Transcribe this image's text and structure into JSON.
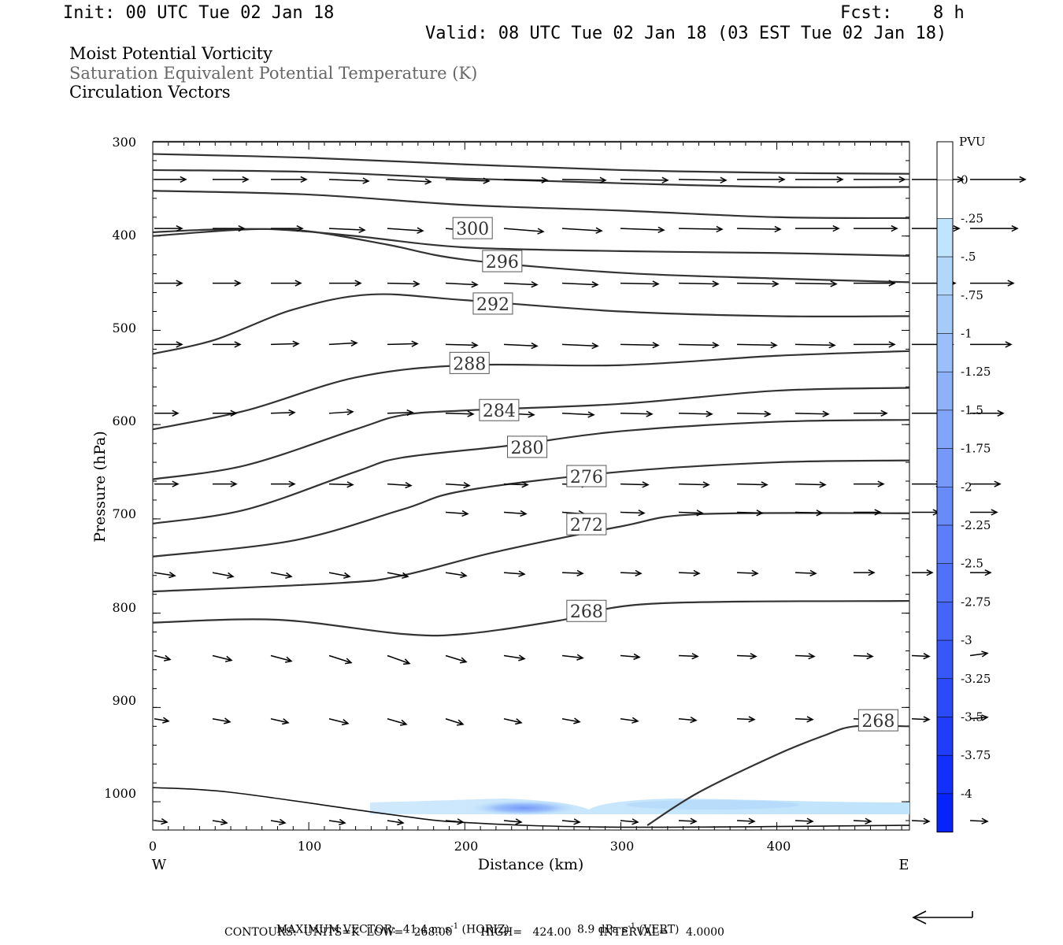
{
  "header": {
    "init": "Init: 00 UTC Tue 02 Jan 18",
    "fcst_label": "Fcst:",
    "fcst_value": "8 h",
    "valid": "Valid: 08 UTC Tue 02 Jan 18 (03 EST Tue 02 Jan 18)",
    "fields": [
      "Moist Potential Vorticity",
      "Saturation Equivalent Potential Temperature (K)",
      "Circulation Vectors"
    ]
  },
  "axes": {
    "ylabel": "Pressure (hPa)",
    "xlabel": "Distance (km)",
    "y_ticks": [
      "300",
      "400",
      "500",
      "600",
      "700",
      "800",
      "900",
      "1000"
    ],
    "x_ticks": [
      "0",
      "100",
      "200",
      "300",
      "400"
    ],
    "west_label": "W",
    "east_label": "E"
  },
  "colorbar": {
    "unit": "PVU",
    "labels": [
      "0",
      "-.25",
      "-.5",
      "-.75",
      "-1",
      "-1.25",
      "-1.5",
      "-1.75",
      "-2",
      "-2.25",
      "-2.5",
      "-2.75",
      "-3",
      "-3.25",
      "-3.5",
      "-3.75",
      "-4"
    ],
    "colors": [
      "#ffffff",
      "#ffffff",
      "#bfe4fb",
      "#b2d7fa",
      "#a6cbf9",
      "#9abffa",
      "#8db2fa",
      "#81a5fa",
      "#7598fa",
      "#688bfa",
      "#5c7efa",
      "#5071fa",
      "#4464fa",
      "#3757fa",
      "#2b4afa",
      "#1f3dfa",
      "#1230fa",
      "#0623fa"
    ]
  },
  "footer": {
    "max_vector_label": "MAXIMUM VECTOR:",
    "horiz_value": "41.4 m s",
    "horiz_unit": "(HORIZ)",
    "vert_value": "8.9 dPa s",
    "vert_unit": "(VERT)",
    "exp": "-1",
    "contours": "CONTOURS:  UNITS=K  LOW=   268.00        HIGH=   424.00        INTERVAL=     4.0000"
  },
  "chart_data": {
    "type": "line",
    "title": "",
    "xlabel": "Distance (km)",
    "ylabel": "Pressure (hPa)",
    "xlim": [
      0,
      485
    ],
    "ylim": [
      1030,
      300
    ],
    "y_scale": "linear, inverted",
    "contour_units": "K",
    "contour_interval": 4,
    "contours": [
      {
        "label": "",
        "points": [
          [
            0,
            300
          ],
          [
            485,
            300
          ]
        ]
      },
      {
        "label": "",
        "points": [
          [
            0,
            313
          ],
          [
            100,
            317
          ],
          [
            200,
            324
          ],
          [
            300,
            330
          ],
          [
            400,
            333
          ],
          [
            485,
            334
          ]
        ]
      },
      {
        "label": "",
        "points": [
          [
            0,
            330
          ],
          [
            100,
            332
          ],
          [
            200,
            339
          ],
          [
            300,
            344
          ],
          [
            400,
            348
          ],
          [
            485,
            348
          ]
        ]
      },
      {
        "label": "",
        "points": [
          [
            0,
            352
          ],
          [
            100,
            356
          ],
          [
            200,
            367
          ],
          [
            300,
            373
          ],
          [
            400,
            380
          ],
          [
            485,
            381
          ]
        ]
      },
      {
        "label": "300",
        "points": [
          [
            0,
            396
          ],
          [
            40,
            393
          ],
          [
            80,
            393
          ],
          [
            130,
            400
          ],
          [
            200,
            412
          ],
          [
            300,
            416
          ],
          [
            400,
            418
          ],
          [
            485,
            421
          ]
        ]
      },
      {
        "label": "296",
        "points": [
          [
            0,
            400
          ],
          [
            60,
            393
          ],
          [
            100,
            395
          ],
          [
            150,
            409
          ],
          [
            200,
            425
          ],
          [
            300,
            439
          ],
          [
            400,
            445
          ],
          [
            485,
            449
          ]
        ]
      },
      {
        "label": "292",
        "points": [
          [
            0,
            525
          ],
          [
            40,
            510
          ],
          [
            90,
            478
          ],
          [
            140,
            462
          ],
          [
            200,
            468
          ],
          [
            300,
            480
          ],
          [
            400,
            485
          ],
          [
            485,
            485
          ]
        ]
      },
      {
        "label": "288",
        "points": [
          [
            0,
            605
          ],
          [
            60,
            585
          ],
          [
            130,
            550
          ],
          [
            200,
            537
          ],
          [
            300,
            537
          ],
          [
            400,
            527
          ],
          [
            485,
            522
          ]
        ]
      },
      {
        "label": "284",
        "points": [
          [
            0,
            658
          ],
          [
            60,
            643
          ],
          [
            130,
            605
          ],
          [
            160,
            590
          ],
          [
            200,
            585
          ],
          [
            300,
            578
          ],
          [
            400,
            564
          ],
          [
            485,
            561
          ]
        ]
      },
      {
        "label": "280",
        "points": [
          [
            0,
            705
          ],
          [
            60,
            690
          ],
          [
            130,
            650
          ],
          [
            160,
            635
          ],
          [
            230,
            622
          ],
          [
            300,
            607
          ],
          [
            400,
            597
          ],
          [
            485,
            595
          ]
        ]
      },
      {
        "label": "276",
        "points": [
          [
            0,
            740
          ],
          [
            90,
            723
          ],
          [
            160,
            690
          ],
          [
            200,
            670
          ],
          [
            300,
            650
          ],
          [
            400,
            640
          ],
          [
            485,
            638
          ]
        ]
      },
      {
        "label": "272",
        "points": [
          [
            0,
            777
          ],
          [
            120,
            768
          ],
          [
            160,
            760
          ],
          [
            220,
            735
          ],
          [
            300,
            708
          ],
          [
            350,
            695
          ],
          [
            485,
            694
          ]
        ]
      },
      {
        "label": "268",
        "points": [
          [
            0,
            810
          ],
          [
            80,
            807
          ],
          [
            160,
            822
          ],
          [
            200,
            822
          ],
          [
            260,
            808
          ],
          [
            320,
            790
          ],
          [
            485,
            787
          ]
        ]
      },
      {
        "label": "268",
        "points": [
          [
            317,
            1025
          ],
          [
            350,
            990
          ],
          [
            400,
            950
          ],
          [
            430,
            930
          ],
          [
            450,
            920
          ],
          [
            485,
            920
          ]
        ]
      },
      {
        "label": "",
        "points": [
          [
            0,
            985
          ],
          [
            50,
            990
          ],
          [
            150,
            1013
          ],
          [
            200,
            1022
          ],
          [
            300,
            1027
          ],
          [
            485,
            1025
          ]
        ]
      }
    ],
    "vectors_note": "circulation vectors predominantly westerly (left to right), descending slightly in the lower troposphere",
    "shading": {
      "field": "Moist Potential Vorticity",
      "unit": "PVU",
      "region_km": [
        140,
        485
      ],
      "region_hPa": [
        1008,
        1028
      ],
      "min_value": -1.5
    }
  }
}
